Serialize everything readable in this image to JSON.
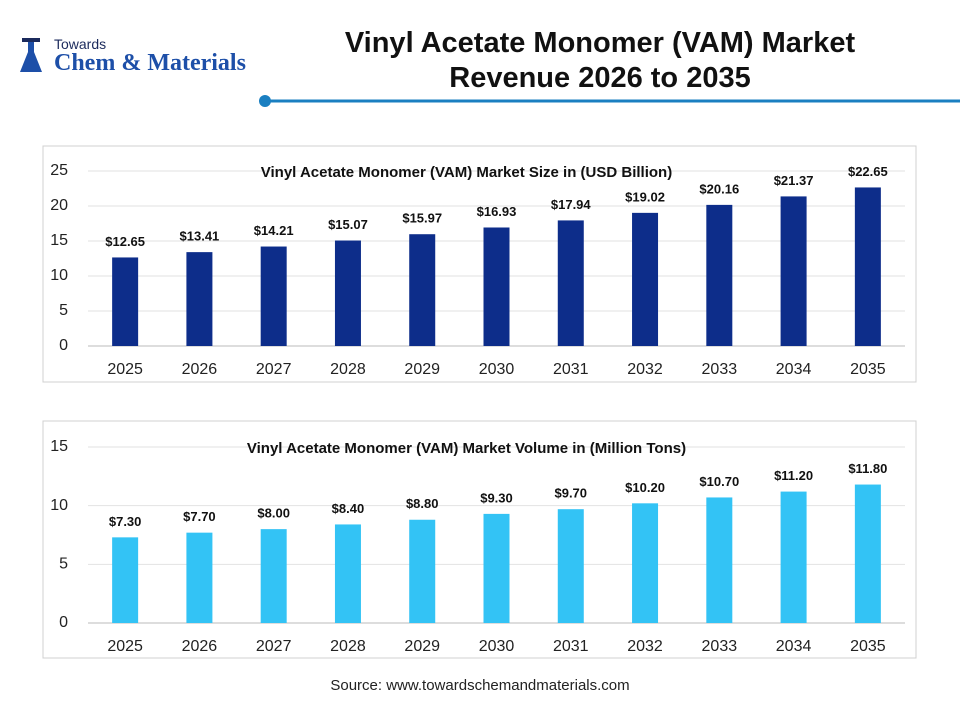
{
  "logo": {
    "small": "Towards",
    "large": "Chem & Materials"
  },
  "title": "Vinyl Acetate Monomer (VAM) Market Revenue 2026 to 2035",
  "chart_data": [
    {
      "type": "bar",
      "title": "Vinyl Acetate Monomer (VAM) Market Size in (USD Billion)",
      "categories": [
        "2025",
        "2026",
        "2027",
        "2028",
        "2029",
        "2030",
        "2031",
        "2032",
        "2033",
        "2034",
        "2035"
      ],
      "values": [
        12.65,
        13.41,
        14.21,
        15.07,
        15.97,
        16.93,
        17.94,
        19.02,
        20.16,
        21.37,
        22.65
      ],
      "value_labels": [
        "$12.65",
        "$13.41",
        "$14.21",
        "$15.07",
        "$15.97",
        "$16.93",
        "$17.94",
        "$19.02",
        "$20.16",
        "$21.37",
        "$22.65"
      ],
      "color": "#0d2d8a",
      "ylim": [
        0,
        25
      ],
      "yticks": [
        0,
        5,
        10,
        15,
        20,
        25
      ],
      "grid": true
    },
    {
      "type": "bar",
      "title": "Vinyl Acetate Monomer (VAM) Market Volume in (Million Tons)",
      "categories": [
        "2025",
        "2026",
        "2027",
        "2028",
        "2029",
        "2030",
        "2031",
        "2032",
        "2033",
        "2034",
        "2035"
      ],
      "values": [
        7.3,
        7.7,
        8.0,
        8.4,
        8.8,
        9.3,
        9.7,
        10.2,
        10.7,
        11.2,
        11.8
      ],
      "value_labels": [
        "$7.30",
        "$7.70",
        "$8.00",
        "$8.40",
        "$8.80",
        "$9.30",
        "$9.70",
        "$10.20",
        "$10.70",
        "$11.20",
        "$11.80"
      ],
      "color": "#33c3f5",
      "ylim": [
        0,
        15
      ],
      "yticks": [
        0,
        5,
        10,
        15
      ],
      "grid": true
    }
  ],
  "source": "Source: www.towardschemandmaterials.com"
}
